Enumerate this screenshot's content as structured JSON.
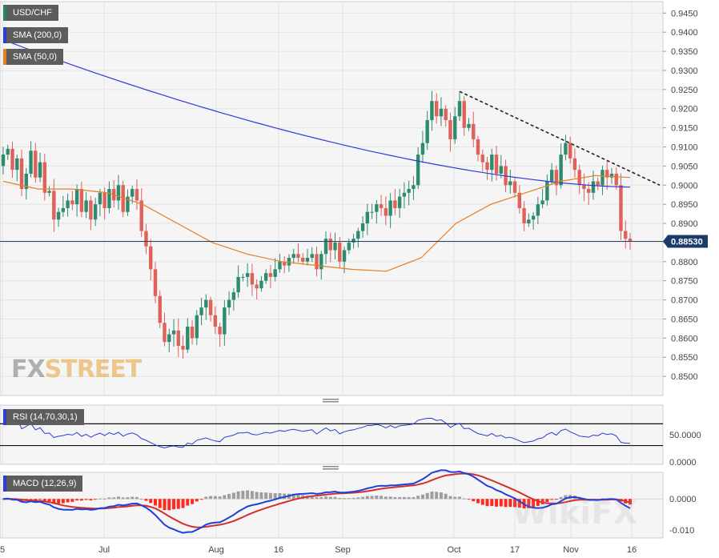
{
  "instrument": "USD/CHF",
  "indicators": {
    "sma200": {
      "label": "SMA (200,0)",
      "color": "#2b3bd6"
    },
    "sma50": {
      "label": "SMA (50,0)",
      "color": "#e67e22"
    },
    "rsi": {
      "label": "RSI (14,70,30,1)",
      "color": "#2b3bd6"
    },
    "macd": {
      "label": "MACD (12,26,9)",
      "macd_color": "#1f3fd8",
      "signal_color": "#d32f2f"
    }
  },
  "brand": {
    "logo_fx": "FX",
    "logo_street": "STREET",
    "watermark": "WikiFX"
  },
  "colors": {
    "up": "#2e8b6e",
    "down": "#e0605a",
    "bg": "#f5f5f5",
    "hist_pos": "#9e9e9e",
    "hist_neg": "#ff2a1f"
  },
  "chart_data": {
    "type": "candlestick",
    "title": "USD/CHF",
    "x_tick_labels": [
      "5",
      "Jul",
      "Aug",
      "16",
      "Sep",
      "Oct",
      "17",
      "Nov",
      "16"
    ],
    "price_axis": {
      "ylim": [
        0.845,
        0.948
      ],
      "ticks": [
        "0.9450",
        "0.9400",
        "0.9350",
        "0.9300",
        "0.9250",
        "0.9200",
        "0.9150",
        "0.9100",
        "0.9050",
        "0.9000",
        "0.8950",
        "0.8900",
        "0.8850",
        "0.8800",
        "0.8750",
        "0.8700",
        "0.8650",
        "0.8600",
        "0.8550",
        "0.8500"
      ]
    },
    "last_price": "0.88530",
    "last_price_value": 0.8853,
    "closes": [
      0.908,
      0.9095,
      0.904,
      0.907,
      0.899,
      0.903,
      0.909,
      0.902,
      0.906,
      0.898,
      0.8985,
      0.891,
      0.893,
      0.894,
      0.896,
      0.895,
      0.899,
      0.893,
      0.896,
      0.891,
      0.895,
      0.898,
      0.894,
      0.899,
      0.896,
      0.9,
      0.893,
      0.897,
      0.899,
      0.896,
      0.888,
      0.884,
      0.878,
      0.871,
      0.864,
      0.859,
      0.861,
      0.862,
      0.858,
      0.857,
      0.863,
      0.86,
      0.866,
      0.868,
      0.87,
      0.866,
      0.863,
      0.861,
      0.868,
      0.87,
      0.872,
      0.876,
      0.876,
      0.877,
      0.874,
      0.873,
      0.875,
      0.877,
      0.876,
      0.878,
      0.88,
      0.879,
      0.881,
      0.882,
      0.881,
      0.88,
      0.881,
      0.882,
      0.878,
      0.882,
      0.886,
      0.883,
      0.885,
      0.88,
      0.883,
      0.885,
      0.886,
      0.888,
      0.89,
      0.893,
      0.893,
      0.895,
      0.894,
      0.892,
      0.896,
      0.894,
      0.897,
      0.898,
      0.899,
      0.9,
      0.908,
      0.911,
      0.917,
      0.922,
      0.918,
      0.92,
      0.917,
      0.912,
      0.918,
      0.922,
      0.915,
      0.916,
      0.912,
      0.908,
      0.906,
      0.904,
      0.908,
      0.903,
      0.905,
      0.9,
      0.901,
      0.898,
      0.894,
      0.89,
      0.891,
      0.892,
      0.895,
      0.896,
      0.901,
      0.904,
      0.9,
      0.908,
      0.911,
      0.907,
      0.904,
      0.9,
      0.899,
      0.898,
      0.901,
      0.9,
      0.904,
      0.902,
      0.903,
      0.9,
      0.888,
      0.886,
      0.8853
    ],
    "candle_count": 137,
    "sma200_start_end": [
      0.938,
      0.8995
    ],
    "sma50_points": [
      0.901,
      0.899,
      0.899,
      0.898,
      0.895,
      0.89,
      0.885,
      0.882,
      0.88,
      0.879,
      0.878,
      0.8775,
      0.881,
      0.89,
      0.895,
      0.898,
      0.901,
      0.9025,
      0.902
    ],
    "trendline": {
      "from_value": 0.9245,
      "to_value": 0.9
    },
    "rsi": {
      "levels": [
        70,
        30
      ],
      "tick_labels": [
        "50.0000",
        "0.0000"
      ]
    },
    "macd": {
      "tick_labels": [
        "0.0000",
        "-0.010"
      ]
    }
  }
}
